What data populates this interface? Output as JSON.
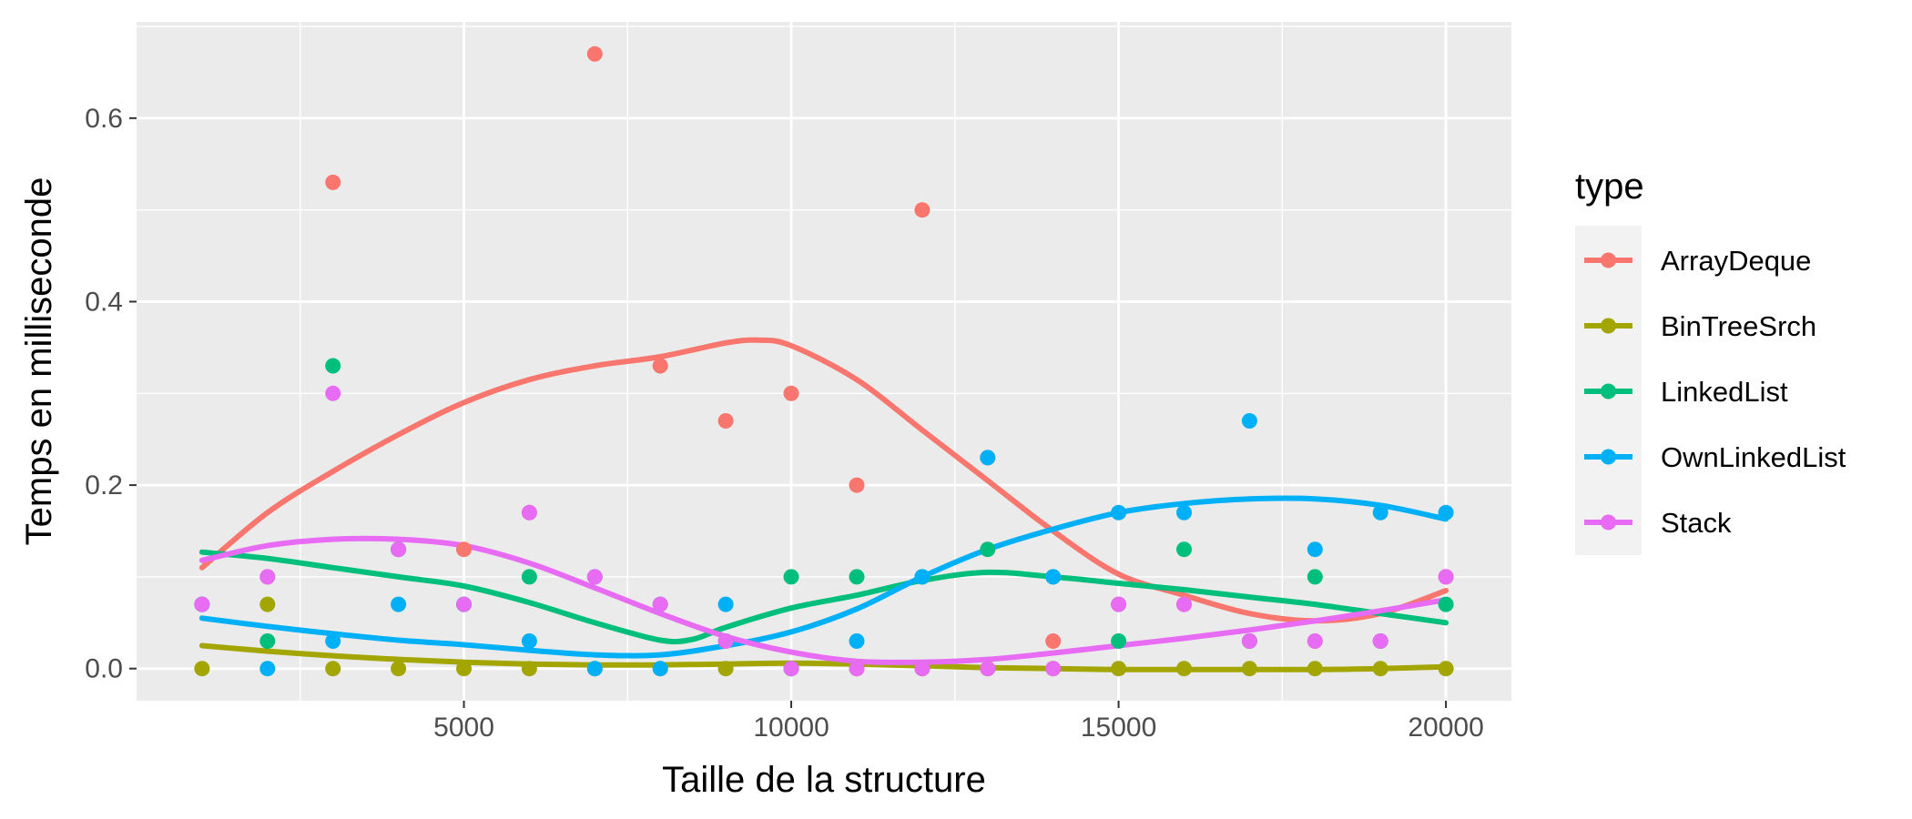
{
  "chart_data": {
    "type": "scatter",
    "xlabel": "Taille de la structure",
    "ylabel": "Temps en milliseconde",
    "xlim": [
      0,
      21000
    ],
    "ylim": [
      -0.035,
      0.705
    ],
    "x_ticks": [
      5000,
      10000,
      15000,
      20000
    ],
    "y_ticks": [
      0.0,
      0.2,
      0.4,
      0.6
    ],
    "x_tick_labels": [
      "5000",
      "10000",
      "15000",
      "20000"
    ],
    "y_tick_labels": [
      "0.0",
      "0.2",
      "0.4",
      "0.6"
    ],
    "grid": true,
    "legend_title": "type",
    "legend_position": "right",
    "series": [
      {
        "name": "ArrayDeque",
        "color": "#F8766D",
        "x": [
          1000,
          2000,
          3000,
          4000,
          5000,
          6000,
          7000,
          8000,
          9000,
          10000,
          11000,
          12000,
          13000,
          14000,
          15000,
          16000,
          17000,
          18000,
          19000,
          20000
        ],
        "y": [
          0.07,
          0.1,
          0.53,
          0.13,
          0.13,
          0.17,
          0.67,
          0.33,
          0.27,
          0.3,
          0.2,
          0.5,
          0.23,
          0.03,
          0.07,
          0.07,
          0.03,
          0.03,
          0.03,
          0.1
        ],
        "smooth": [
          [
            1000,
            0.11
          ],
          [
            2000,
            0.17
          ],
          [
            3000,
            0.215
          ],
          [
            4000,
            0.255
          ],
          [
            5000,
            0.29
          ],
          [
            6000,
            0.315
          ],
          [
            7000,
            0.33
          ],
          [
            8000,
            0.34
          ],
          [
            9000,
            0.355
          ],
          [
            9500,
            0.358
          ],
          [
            10000,
            0.352
          ],
          [
            11000,
            0.315
          ],
          [
            12000,
            0.26
          ],
          [
            13000,
            0.205
          ],
          [
            14000,
            0.15
          ],
          [
            15000,
            0.103
          ],
          [
            16000,
            0.08
          ],
          [
            17000,
            0.06
          ],
          [
            18000,
            0.052
          ],
          [
            19000,
            0.06
          ],
          [
            20000,
            0.085
          ]
        ]
      },
      {
        "name": "BinTreeSrch",
        "color": "#A3A500",
        "x": [
          1000,
          2000,
          3000,
          4000,
          5000,
          6000,
          7000,
          8000,
          9000,
          10000,
          11000,
          12000,
          13000,
          14000,
          15000,
          16000,
          17000,
          18000,
          19000,
          20000
        ],
        "y": [
          0.0,
          0.07,
          0.0,
          0.0,
          0.0,
          0.0,
          0.0,
          0.0,
          0.0,
          0.0,
          0.0,
          0.0,
          0.0,
          0.0,
          0.0,
          0.0,
          0.0,
          0.0,
          0.0,
          0.0
        ],
        "smooth": [
          [
            1000,
            0.025
          ],
          [
            2000,
            0.019
          ],
          [
            3000,
            0.014
          ],
          [
            4000,
            0.01
          ],
          [
            5000,
            0.007
          ],
          [
            6000,
            0.005
          ],
          [
            7000,
            0.004
          ],
          [
            8000,
            0.004
          ],
          [
            9000,
            0.005
          ],
          [
            10000,
            0.006
          ],
          [
            11000,
            0.005
          ],
          [
            12000,
            0.003
          ],
          [
            13000,
            0.001
          ],
          [
            14000,
            0.0
          ],
          [
            15000,
            -0.001
          ],
          [
            16000,
            -0.001
          ],
          [
            17000,
            -0.001
          ],
          [
            18000,
            -0.001
          ],
          [
            19000,
            0.0
          ],
          [
            20000,
            0.002
          ]
        ]
      },
      {
        "name": "LinkedList",
        "color": "#00BF7D",
        "x": [
          1000,
          2000,
          3000,
          4000,
          5000,
          6000,
          7000,
          8000,
          9000,
          10000,
          11000,
          12000,
          13000,
          14000,
          15000,
          16000,
          17000,
          18000,
          19000,
          20000
        ],
        "y": [
          0.07,
          0.03,
          0.33,
          0.13,
          0.07,
          0.1,
          0.1,
          0.07,
          0.03,
          0.1,
          0.1,
          0.1,
          0.13,
          0.1,
          0.03,
          0.13,
          0.03,
          0.1,
          0.03,
          0.07
        ],
        "smooth": [
          [
            1000,
            0.127
          ],
          [
            2000,
            0.12
          ],
          [
            3000,
            0.11
          ],
          [
            4000,
            0.1
          ],
          [
            5000,
            0.09
          ],
          [
            6000,
            0.072
          ],
          [
            7000,
            0.05
          ],
          [
            8000,
            0.031
          ],
          [
            8500,
            0.032
          ],
          [
            9000,
            0.045
          ],
          [
            10000,
            0.066
          ],
          [
            11000,
            0.08
          ],
          [
            12000,
            0.096
          ],
          [
            13000,
            0.105
          ],
          [
            14000,
            0.1
          ],
          [
            15000,
            0.093
          ],
          [
            16000,
            0.086
          ],
          [
            17000,
            0.078
          ],
          [
            18000,
            0.07
          ],
          [
            19000,
            0.06
          ],
          [
            20000,
            0.05
          ]
        ]
      },
      {
        "name": "OwnLinkedList",
        "color": "#00B0F6",
        "x": [
          1000,
          2000,
          3000,
          4000,
          5000,
          6000,
          7000,
          8000,
          9000,
          10000,
          11000,
          12000,
          13000,
          14000,
          15000,
          16000,
          17000,
          18000,
          19000,
          20000
        ],
        "y": [
          0.07,
          0.0,
          0.03,
          0.07,
          0.07,
          0.03,
          0.0,
          0.0,
          0.07,
          0.0,
          0.03,
          0.1,
          0.23,
          0.1,
          0.17,
          0.17,
          0.27,
          0.13,
          0.17,
          0.17
        ],
        "smooth": [
          [
            1000,
            0.055
          ],
          [
            2000,
            0.046
          ],
          [
            3000,
            0.038
          ],
          [
            4000,
            0.031
          ],
          [
            5000,
            0.026
          ],
          [
            6000,
            0.02
          ],
          [
            7000,
            0.015
          ],
          [
            8000,
            0.015
          ],
          [
            9000,
            0.025
          ],
          [
            10000,
            0.04
          ],
          [
            11000,
            0.065
          ],
          [
            12000,
            0.1
          ],
          [
            13000,
            0.13
          ],
          [
            14000,
            0.152
          ],
          [
            15000,
            0.17
          ],
          [
            16000,
            0.18
          ],
          [
            17000,
            0.185
          ],
          [
            18000,
            0.185
          ],
          [
            19000,
            0.178
          ],
          [
            20000,
            0.163
          ]
        ]
      },
      {
        "name": "Stack",
        "color": "#E76BF3",
        "x": [
          1000,
          2000,
          3000,
          4000,
          5000,
          6000,
          7000,
          8000,
          9000,
          10000,
          11000,
          12000,
          13000,
          14000,
          15000,
          16000,
          17000,
          18000,
          19000,
          20000
        ],
        "y": [
          0.07,
          0.1,
          0.3,
          0.13,
          0.07,
          0.17,
          0.1,
          0.07,
          0.03,
          0.0,
          0.0,
          0.0,
          0.0,
          0.0,
          0.07,
          0.07,
          0.03,
          0.03,
          0.03,
          0.1
        ],
        "smooth": [
          [
            1000,
            0.118
          ],
          [
            2000,
            0.134
          ],
          [
            3000,
            0.141
          ],
          [
            4000,
            0.141
          ],
          [
            5000,
            0.134
          ],
          [
            6000,
            0.115
          ],
          [
            7000,
            0.088
          ],
          [
            8000,
            0.06
          ],
          [
            9000,
            0.035
          ],
          [
            10000,
            0.018
          ],
          [
            11000,
            0.008
          ],
          [
            12000,
            0.007
          ],
          [
            13000,
            0.01
          ],
          [
            14000,
            0.017
          ],
          [
            15000,
            0.025
          ],
          [
            16000,
            0.033
          ],
          [
            17000,
            0.042
          ],
          [
            18000,
            0.052
          ],
          [
            19000,
            0.063
          ],
          [
            20000,
            0.075
          ]
        ]
      }
    ]
  }
}
